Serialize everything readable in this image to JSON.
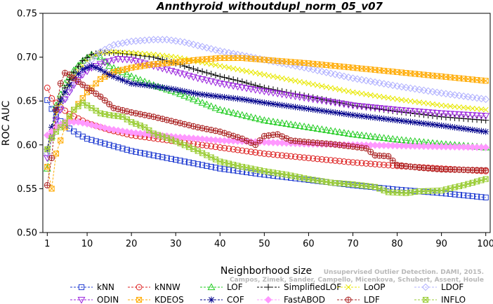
{
  "chart_data": {
    "type": "line",
    "title": "Annthyroid_withoutdupl_norm_05_v07",
    "xlabel": "Neighborhood size",
    "ylabel": "ROC AUC",
    "xlim": [
      0,
      101
    ],
    "ylim": [
      0.5,
      0.75
    ],
    "x_ticks": [
      1,
      10,
      20,
      30,
      40,
      50,
      60,
      70,
      80,
      90,
      100
    ],
    "y_ticks": [
      "0.50",
      "0.55",
      "0.60",
      "0.65",
      "0.70",
      "0.75"
    ],
    "grid": false,
    "legend_placement": "bottom",
    "watermark": {
      "line1": "Unsupervised Outlier Detection. DAMI, 2015.",
      "line2": "Campos, Zimek, Sander, Campello, Micenkova, Schubert, Assent, Houle"
    },
    "series": [
      {
        "name": "kNN",
        "color": "#1f3bd1",
        "marker": "square",
        "knots": [
          [
            1,
            0.651
          ],
          [
            2,
            0.641
          ],
          [
            3,
            0.632
          ],
          [
            5,
            0.622
          ],
          [
            8,
            0.612
          ],
          [
            10,
            0.607
          ],
          [
            15,
            0.6
          ],
          [
            20,
            0.593
          ],
          [
            25,
            0.588
          ],
          [
            30,
            0.583
          ],
          [
            40,
            0.573
          ],
          [
            50,
            0.566
          ],
          [
            60,
            0.56
          ],
          [
            70,
            0.554
          ],
          [
            80,
            0.549
          ],
          [
            90,
            0.545
          ],
          [
            100,
            0.54
          ]
        ]
      },
      {
        "name": "kNNW",
        "color": "#dd2222",
        "marker": "circle",
        "knots": [
          [
            1,
            0.665
          ],
          [
            2,
            0.653
          ],
          [
            4,
            0.643
          ],
          [
            6,
            0.635
          ],
          [
            10,
            0.625
          ],
          [
            15,
            0.617
          ],
          [
            20,
            0.611
          ],
          [
            30,
            0.604
          ],
          [
            40,
            0.597
          ],
          [
            50,
            0.59
          ],
          [
            60,
            0.585
          ],
          [
            70,
            0.58
          ],
          [
            80,
            0.576
          ],
          [
            90,
            0.573
          ],
          [
            100,
            0.57
          ]
        ]
      },
      {
        "name": "LOF",
        "color": "#22cc22",
        "marker": "triangle",
        "knots": [
          [
            1,
            0.573
          ],
          [
            2,
            0.61
          ],
          [
            3,
            0.645
          ],
          [
            5,
            0.67
          ],
          [
            7,
            0.685
          ],
          [
            9,
            0.696
          ],
          [
            11,
            0.703
          ],
          [
            13,
            0.7
          ],
          [
            15,
            0.69
          ],
          [
            20,
            0.678
          ],
          [
            25,
            0.668
          ],
          [
            30,
            0.66
          ],
          [
            35,
            0.65
          ],
          [
            40,
            0.64
          ],
          [
            45,
            0.634
          ],
          [
            50,
            0.628
          ],
          [
            60,
            0.62
          ],
          [
            70,
            0.612
          ],
          [
            80,
            0.606
          ],
          [
            90,
            0.601
          ],
          [
            100,
            0.597
          ]
        ]
      },
      {
        "name": "SimplifiedLOF",
        "color": "#000000",
        "marker": "plus",
        "knots": [
          [
            1,
            0.595
          ],
          [
            2,
            0.62
          ],
          [
            3,
            0.64
          ],
          [
            5,
            0.665
          ],
          [
            7,
            0.683
          ],
          [
            9,
            0.696
          ],
          [
            11,
            0.703
          ],
          [
            13,
            0.705
          ],
          [
            16,
            0.705
          ],
          [
            20,
            0.703
          ],
          [
            25,
            0.7
          ],
          [
            30,
            0.693
          ],
          [
            35,
            0.685
          ],
          [
            40,
            0.678
          ],
          [
            45,
            0.672
          ],
          [
            50,
            0.665
          ],
          [
            60,
            0.655
          ],
          [
            70,
            0.645
          ],
          [
            80,
            0.638
          ],
          [
            90,
            0.632
          ],
          [
            100,
            0.628
          ]
        ]
      },
      {
        "name": "LoOP",
        "color": "#e8e800",
        "marker": "x",
        "knots": [
          [
            1,
            0.594
          ],
          [
            2,
            0.615
          ],
          [
            3,
            0.635
          ],
          [
            5,
            0.66
          ],
          [
            7,
            0.678
          ],
          [
            9,
            0.69
          ],
          [
            11,
            0.7
          ],
          [
            13,
            0.705
          ],
          [
            16,
            0.706
          ],
          [
            20,
            0.705
          ],
          [
            25,
            0.703
          ],
          [
            30,
            0.7
          ],
          [
            35,
            0.695
          ],
          [
            40,
            0.69
          ],
          [
            50,
            0.68
          ],
          [
            60,
            0.67
          ],
          [
            70,
            0.66
          ],
          [
            80,
            0.652
          ],
          [
            90,
            0.645
          ],
          [
            100,
            0.64
          ]
        ]
      },
      {
        "name": "LDOF",
        "color": "#b0b0ff",
        "marker": "diamond",
        "knots": [
          [
            1,
            0.59
          ],
          [
            2,
            0.612
          ],
          [
            3,
            0.63
          ],
          [
            5,
            0.652
          ],
          [
            7,
            0.67
          ],
          [
            9,
            0.685
          ],
          [
            11,
            0.697
          ],
          [
            13,
            0.706
          ],
          [
            16,
            0.714
          ],
          [
            20,
            0.718
          ],
          [
            25,
            0.72
          ],
          [
            28,
            0.72
          ],
          [
            32,
            0.717
          ],
          [
            36,
            0.712
          ],
          [
            40,
            0.707
          ],
          [
            50,
            0.697
          ],
          [
            60,
            0.687
          ],
          [
            70,
            0.676
          ],
          [
            80,
            0.667
          ],
          [
            90,
            0.659
          ],
          [
            100,
            0.652
          ]
        ]
      },
      {
        "name": "ODIN",
        "color": "#9a22dd",
        "marker": "triangle-down",
        "knots": [
          [
            1,
            0.585
          ],
          [
            2,
            0.608
          ],
          [
            3,
            0.628
          ],
          [
            5,
            0.652
          ],
          [
            7,
            0.668
          ],
          [
            9,
            0.68
          ],
          [
            11,
            0.688
          ],
          [
            14,
            0.694
          ],
          [
            17,
            0.698
          ],
          [
            20,
            0.697
          ],
          [
            25,
            0.69
          ],
          [
            30,
            0.683
          ],
          [
            35,
            0.676
          ],
          [
            40,
            0.67
          ],
          [
            50,
            0.661
          ],
          [
            60,
            0.653
          ],
          [
            70,
            0.645
          ],
          [
            80,
            0.64
          ],
          [
            90,
            0.636
          ],
          [
            100,
            0.633
          ]
        ]
      },
      {
        "name": "KDEOS",
        "color": "#ffaa00",
        "marker": "square-x",
        "knots": [
          [
            1,
            0.575
          ],
          [
            2,
            0.55
          ],
          [
            3,
            0.59
          ],
          [
            5,
            0.62
          ],
          [
            7,
            0.64
          ],
          [
            10,
            0.66
          ],
          [
            13,
            0.675
          ],
          [
            16,
            0.683
          ],
          [
            20,
            0.688
          ],
          [
            25,
            0.692
          ],
          [
            30,
            0.694
          ],
          [
            35,
            0.697
          ],
          [
            40,
            0.699
          ],
          [
            45,
            0.699
          ],
          [
            50,
            0.697
          ],
          [
            60,
            0.693
          ],
          [
            70,
            0.688
          ],
          [
            80,
            0.683
          ],
          [
            90,
            0.678
          ],
          [
            100,
            0.673
          ]
        ]
      },
      {
        "name": "COF",
        "color": "#00008b",
        "marker": "star",
        "knots": [
          [
            1,
            0.595
          ],
          [
            2,
            0.62
          ],
          [
            3,
            0.64
          ],
          [
            5,
            0.66
          ],
          [
            7,
            0.676
          ],
          [
            9,
            0.686
          ],
          [
            11,
            0.69
          ],
          [
            13,
            0.686
          ],
          [
            15,
            0.68
          ],
          [
            18,
            0.674
          ],
          [
            20,
            0.67
          ],
          [
            25,
            0.667
          ],
          [
            30,
            0.663
          ],
          [
            35,
            0.658
          ],
          [
            40,
            0.655
          ],
          [
            45,
            0.652
          ],
          [
            50,
            0.648
          ],
          [
            60,
            0.641
          ],
          [
            70,
            0.634
          ],
          [
            80,
            0.628
          ],
          [
            90,
            0.622
          ],
          [
            100,
            0.615
          ]
        ]
      },
      {
        "name": "FastABOD",
        "color": "#ff99ff",
        "marker": "diamond-filled",
        "knots": [
          [
            1,
            0.611
          ],
          [
            3,
            0.62
          ],
          [
            5,
            0.626
          ],
          [
            8,
            0.626
          ],
          [
            10,
            0.624
          ],
          [
            15,
            0.618
          ],
          [
            20,
            0.614
          ],
          [
            30,
            0.609
          ],
          [
            40,
            0.605
          ],
          [
            50,
            0.603
          ],
          [
            60,
            0.601
          ],
          [
            70,
            0.6
          ],
          [
            80,
            0.599
          ],
          [
            90,
            0.598
          ],
          [
            100,
            0.597
          ]
        ]
      },
      {
        "name": "LDF",
        "color": "#aa2222",
        "marker": "circle-plus",
        "knots": [
          [
            1,
            0.554
          ],
          [
            2,
            0.585
          ],
          [
            3,
            0.64
          ],
          [
            4,
            0.67
          ],
          [
            5,
            0.682
          ],
          [
            6,
            0.68
          ],
          [
            8,
            0.672
          ],
          [
            10,
            0.665
          ],
          [
            13,
            0.655
          ],
          [
            16,
            0.642
          ],
          [
            20,
            0.637
          ],
          [
            25,
            0.632
          ],
          [
            30,
            0.626
          ],
          [
            35,
            0.62
          ],
          [
            40,
            0.615
          ],
          [
            45,
            0.607
          ],
          [
            48,
            0.6
          ],
          [
            50,
            0.61
          ],
          [
            53,
            0.612
          ],
          [
            56,
            0.605
          ],
          [
            60,
            0.603
          ],
          [
            65,
            0.601
          ],
          [
            70,
            0.598
          ],
          [
            73,
            0.596
          ],
          [
            75,
            0.588
          ],
          [
            78,
            0.587
          ],
          [
            80,
            0.577
          ],
          [
            85,
            0.574
          ],
          [
            90,
            0.572
          ],
          [
            100,
            0.571
          ]
        ]
      },
      {
        "name": "INFLO",
        "color": "#99cc33",
        "marker": "square-star",
        "knots": [
          [
            1,
            0.595
          ],
          [
            2,
            0.608
          ],
          [
            3,
            0.615
          ],
          [
            5,
            0.625
          ],
          [
            7,
            0.64
          ],
          [
            9,
            0.648
          ],
          [
            11,
            0.642
          ],
          [
            13,
            0.636
          ],
          [
            15,
            0.634
          ],
          [
            18,
            0.632
          ],
          [
            20,
            0.626
          ],
          [
            23,
            0.62
          ],
          [
            25,
            0.613
          ],
          [
            28,
            0.608
          ],
          [
            30,
            0.604
          ],
          [
            35,
            0.593
          ],
          [
            40,
            0.581
          ],
          [
            45,
            0.575
          ],
          [
            50,
            0.57
          ],
          [
            55,
            0.566
          ],
          [
            60,
            0.561
          ],
          [
            65,
            0.557
          ],
          [
            70,
            0.555
          ],
          [
            75,
            0.552
          ],
          [
            78,
            0.546
          ],
          [
            82,
            0.545
          ],
          [
            85,
            0.547
          ],
          [
            90,
            0.548
          ],
          [
            95,
            0.554
          ],
          [
            100,
            0.561
          ]
        ]
      }
    ]
  }
}
